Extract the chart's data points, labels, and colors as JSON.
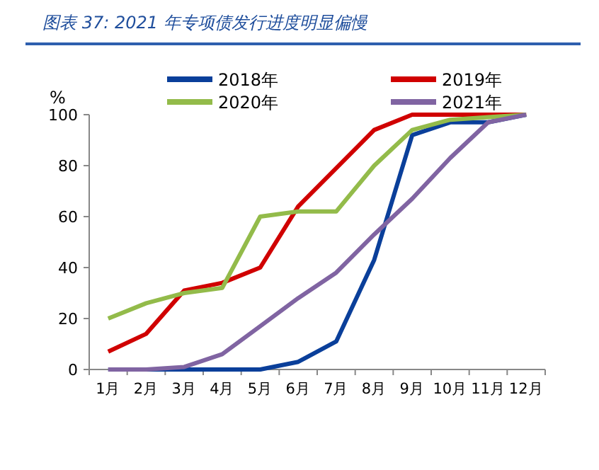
{
  "chart_data": {
    "type": "line",
    "title": "图表 37:  2021 年专项债发行进度明显偏慢",
    "ylabel": "%",
    "categories": [
      "1月",
      "2月",
      "3月",
      "4月",
      "5月",
      "6月",
      "7月",
      "8月",
      "9月",
      "10月",
      "11月",
      "12月"
    ],
    "series": [
      {
        "name": "2018年",
        "color": "#0a3f9a",
        "values": [
          0,
          0,
          0,
          0,
          0,
          3,
          11,
          43,
          92,
          97,
          97,
          100
        ]
      },
      {
        "name": "2019年",
        "color": "#d00000",
        "values": [
          7,
          14,
          31,
          34,
          40,
          64,
          79,
          94,
          100,
          100,
          100,
          100
        ]
      },
      {
        "name": "2020年",
        "color": "#93bb4a",
        "values": [
          20,
          26,
          30,
          32,
          60,
          62,
          62,
          80,
          94,
          98,
          99,
          100
        ]
      },
      {
        "name": "2021年",
        "color": "#8064a2",
        "values": [
          0,
          0,
          1,
          6,
          17,
          28,
          38,
          53,
          67,
          83,
          97,
          100
        ]
      }
    ],
    "ylim": [
      0,
      100
    ],
    "yticks": [
      0,
      20,
      40,
      60,
      80,
      100
    ],
    "grid": false,
    "legend": "top",
    "marker": "none",
    "line_style": "solid"
  }
}
